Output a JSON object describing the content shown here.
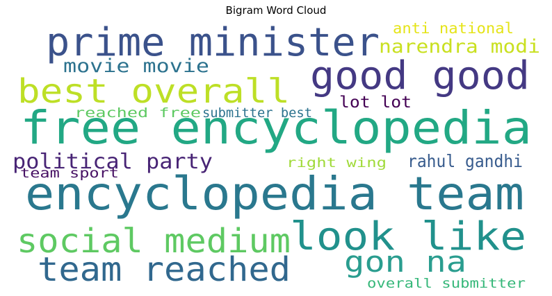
{
  "chart_data": {
    "type": "word_cloud",
    "title": "Bigram Word Cloud",
    "words": [
      {
        "text": "free encyclopedia",
        "color": "#22a884"
      },
      {
        "text": "encyclopedia team",
        "color": "#2a788e"
      },
      {
        "text": "prime minister",
        "color": "#3b528b"
      },
      {
        "text": "good good",
        "color": "#443983"
      },
      {
        "text": "look like",
        "color": "#21918c"
      },
      {
        "text": "best overall",
        "color": "#bddf26"
      },
      {
        "text": "social medium",
        "color": "#5ec962"
      },
      {
        "text": "team reached",
        "color": "#31688e"
      },
      {
        "text": "gon na",
        "color": "#2a9d8f"
      },
      {
        "text": "political party",
        "color": "#482475"
      },
      {
        "text": "narendra modi",
        "color": "#c9e020"
      },
      {
        "text": "movie movie",
        "color": "#2c728e"
      },
      {
        "text": "rahul gandhi",
        "color": "#375b8d"
      },
      {
        "text": "anti national",
        "color": "#e5e419"
      },
      {
        "text": "lot lot",
        "color": "#440154"
      },
      {
        "text": "reached free",
        "color": "#5ec962"
      },
      {
        "text": "submitter best",
        "color": "#2c728e"
      },
      {
        "text": "right wing",
        "color": "#a0da39"
      },
      {
        "text": "team sport",
        "color": "#471164"
      },
      {
        "text": "overall submitter",
        "color": "#35b779"
      }
    ]
  }
}
